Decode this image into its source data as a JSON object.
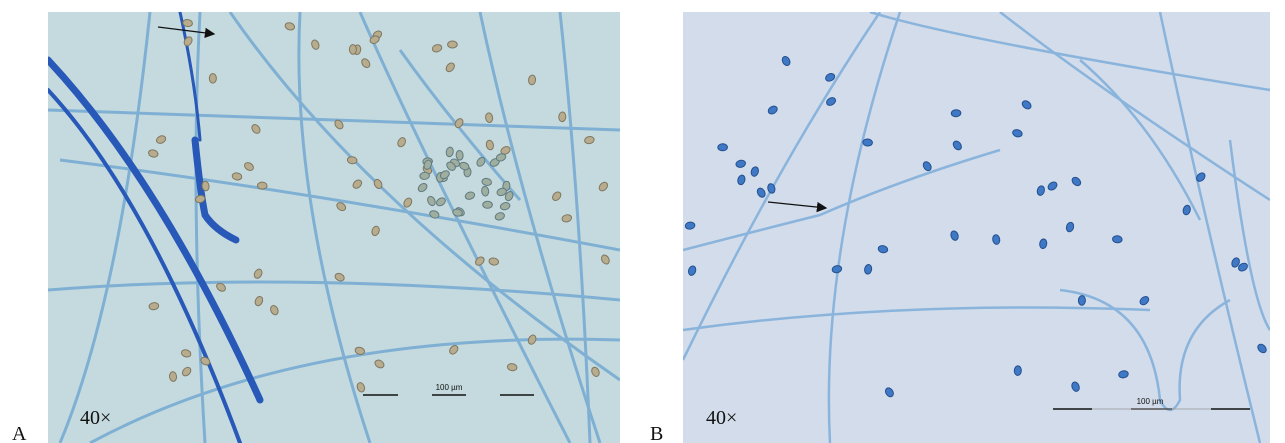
{
  "panels": [
    {
      "label": "A",
      "magnification": "40×",
      "scale_bar": "100 µm"
    },
    {
      "label": "B",
      "magnification": "40×",
      "scale_bar": "100 µm"
    }
  ]
}
